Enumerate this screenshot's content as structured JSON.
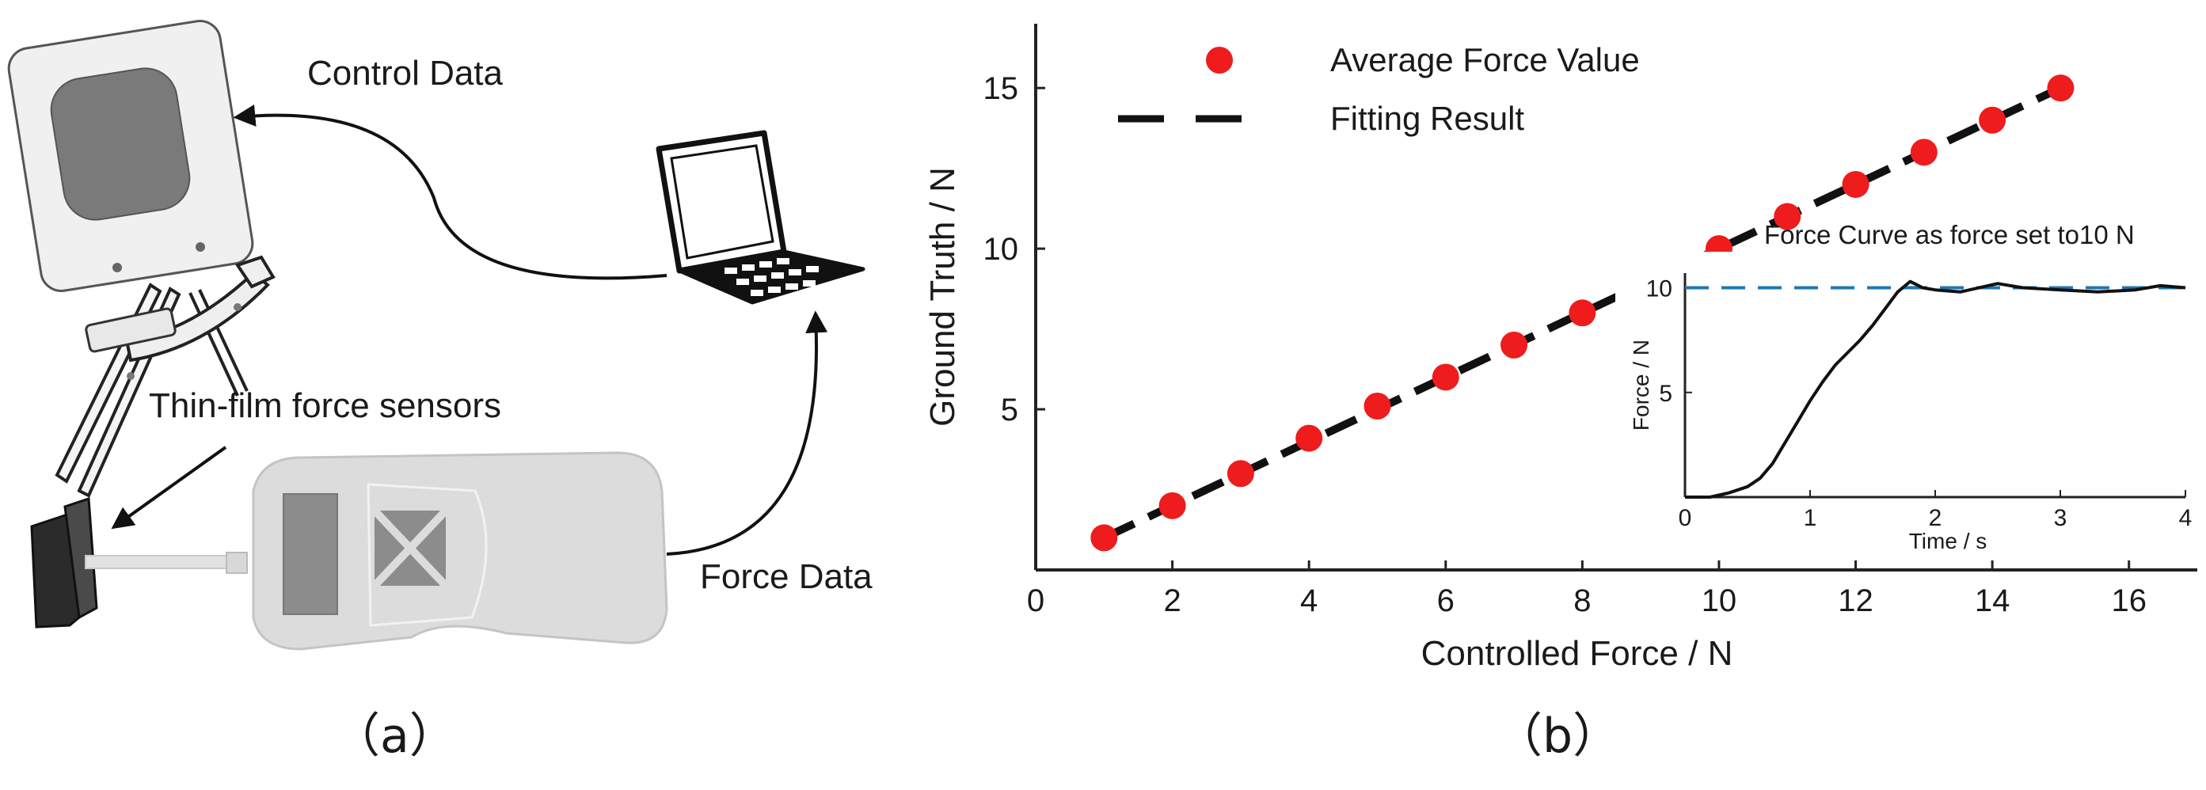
{
  "panel_a": {
    "label": "（a）",
    "control_data": "Control Data",
    "force_data": "Force Data",
    "sensors_label": "Thin-film force sensors"
  },
  "panel_b": {
    "label": "（b）"
  },
  "colors": {
    "marker": "#ee1c1c",
    "fit_line": "#111111",
    "inset_setpoint": "#1f77b4",
    "device_fill": "#d9d9d9",
    "screen_fill": "#808080"
  },
  "chart_data": [
    {
      "type": "scatter",
      "xlabel": "Controlled Force / N",
      "ylabel": "Ground Truth / N",
      "xlim": [
        0,
        17
      ],
      "ylim": [
        0,
        17
      ],
      "xticks": [
        0,
        2,
        4,
        6,
        8,
        10,
        12,
        14,
        16
      ],
      "yticks": [
        5,
        10,
        15
      ],
      "legend_position": "top-center",
      "grid": false,
      "series": [
        {
          "name": "Average Force Value",
          "style": "marker",
          "x": [
            1,
            2,
            3,
            4,
            5,
            6,
            7,
            8,
            9,
            10,
            11,
            12,
            13,
            14,
            15
          ],
          "y": [
            1.0,
            2.0,
            3.0,
            4.1,
            5.1,
            6.0,
            7.0,
            8.0,
            9.0,
            10.0,
            11.0,
            12.0,
            13.0,
            14.0,
            15.0
          ]
        },
        {
          "name": "Fitting Result",
          "style": "dashed-line",
          "x": [
            1,
            15
          ],
          "y": [
            1,
            15
          ]
        }
      ]
    },
    {
      "type": "line",
      "title": "Force Curve as force set to10 N",
      "xlabel": "Time / s",
      "ylabel": "Force / N",
      "xlim": [
        0,
        4
      ],
      "ylim": [
        0,
        10.7
      ],
      "xticks": [
        0,
        1,
        2,
        3,
        4
      ],
      "yticks": [
        5,
        10
      ],
      "series": [
        {
          "style": "solid",
          "x": [
            0.0,
            0.2,
            0.35,
            0.5,
            0.6,
            0.7,
            0.8,
            0.9,
            1.0,
            1.1,
            1.2,
            1.3,
            1.4,
            1.5,
            1.6,
            1.7,
            1.8,
            1.9,
            2.0,
            2.2,
            2.5,
            2.7,
            3.0,
            3.3,
            3.6,
            3.8,
            4.0
          ],
          "y": [
            0.0,
            0.0,
            0.2,
            0.5,
            0.9,
            1.6,
            2.6,
            3.6,
            4.6,
            5.5,
            6.3,
            6.9,
            7.5,
            8.2,
            9.0,
            9.8,
            10.3,
            10.0,
            9.9,
            9.8,
            10.2,
            10.0,
            9.9,
            9.8,
            9.9,
            10.1,
            10.0
          ]
        },
        {
          "style": "dashed-line",
          "x": [
            0,
            4
          ],
          "y": [
            10,
            10
          ]
        }
      ]
    }
  ]
}
